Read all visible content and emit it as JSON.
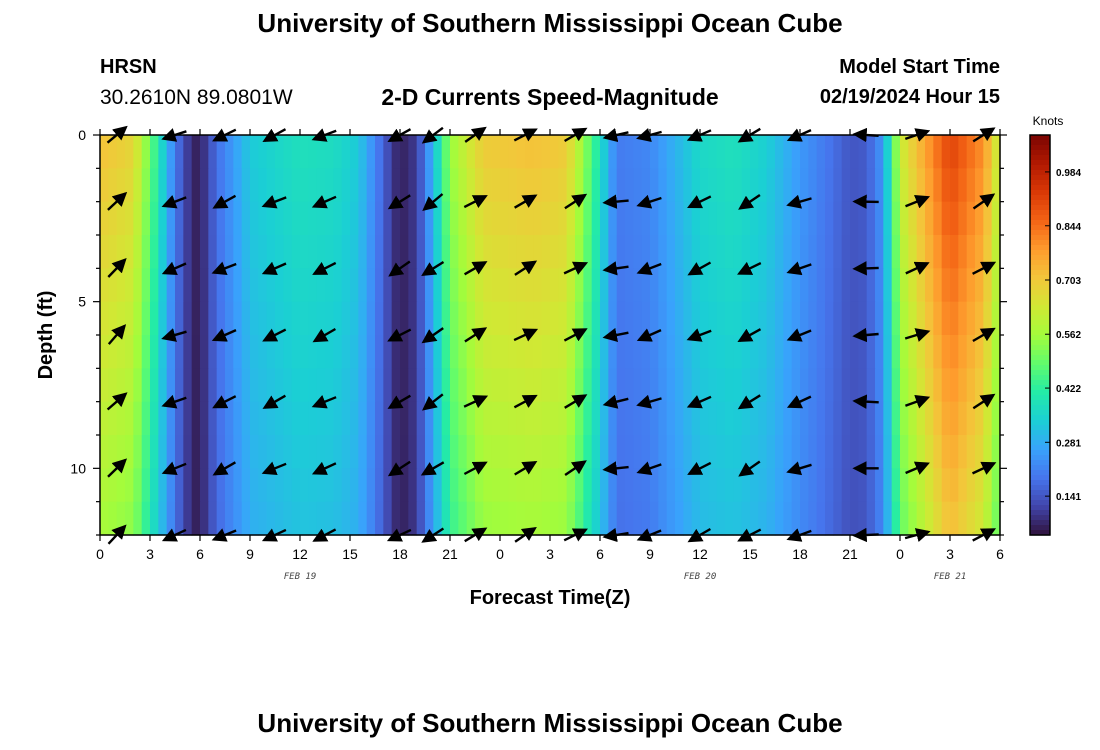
{
  "header": {
    "title": "University of Southern Mississippi Ocean Cube",
    "station": "HRSN",
    "coords": "30.2610N  89.0801W",
    "subtitle": "2-D Currents Speed-Magnitude",
    "start_label": "Model Start Time",
    "start_value": "02/19/2024 Hour 15"
  },
  "footer": {
    "title": "University of Southern Mississippi Ocean Cube"
  },
  "colors": {
    "stops": [
      "#30123b",
      "#4145ab",
      "#4675ed",
      "#39a2fc",
      "#1bcfd4",
      "#24eca6",
      "#61fc6c",
      "#a4fc3b",
      "#d1e834",
      "#f3c63a",
      "#fe9b2d",
      "#f36315",
      "#d93806",
      "#b11901",
      "#7a0402"
    ]
  },
  "chart_data": {
    "type": "heatmap",
    "title": "2-D Currents Speed-Magnitude",
    "xlabel": "Forecast Time(Z)",
    "ylabel": "Depth (ft)",
    "x_ticks": [
      "0",
      "3",
      "6",
      "9",
      "12",
      "15",
      "18",
      "21",
      "0",
      "3",
      "6",
      "9",
      "12",
      "15",
      "18",
      "21",
      "0",
      "3",
      "6"
    ],
    "date_labels": [
      {
        "label": "FEB 19",
        "hour": 12
      },
      {
        "label": "FEB 20",
        "hour": 36
      },
      {
        "label": "FEB 21",
        "hour": 51
      }
    ],
    "y_ticks": [
      0,
      5,
      10
    ],
    "ylim": [
      0,
      12
    ],
    "xlim": [
      0,
      54
    ],
    "colorbar": {
      "unit": "Knots",
      "range": [
        0.04,
        1.08
      ],
      "ticks": [
        "0.984",
        "0.844",
        "0.703",
        "0.562",
        "0.422",
        "0.281",
        "0.141"
      ],
      "tick_values": [
        0.984,
        0.844,
        0.703,
        0.562,
        0.422,
        0.281,
        0.141
      ]
    },
    "speed_profile_hours": [
      0,
      2,
      3,
      3.5,
      4.5,
      5.5,
      6,
      7,
      9,
      12,
      14,
      15.5,
      16.5,
      17.5,
      18,
      19,
      20,
      21,
      23,
      26,
      28,
      29,
      30,
      31,
      33,
      36,
      38,
      40,
      42,
      44,
      45,
      46,
      47,
      48,
      51,
      53,
      54
    ],
    "speed_profile_knots": [
      0.72,
      0.68,
      0.5,
      0.4,
      0.2,
      0.07,
      0.06,
      0.18,
      0.33,
      0.38,
      0.37,
      0.33,
      0.22,
      0.1,
      0.06,
      0.1,
      0.3,
      0.55,
      0.7,
      0.72,
      0.7,
      0.55,
      0.38,
      0.2,
      0.22,
      0.36,
      0.38,
      0.34,
      0.25,
      0.18,
      0.14,
      0.15,
      0.25,
      0.62,
      0.92,
      0.8,
      0.6
    ],
    "vector_depths_ft": [
      0,
      2,
      4,
      6,
      8,
      10,
      12
    ],
    "vector_hours": [
      1,
      4.5,
      7.5,
      10.5,
      13.5,
      18,
      20,
      22.5,
      25.5,
      28.5,
      31,
      33,
      36,
      39,
      42,
      46,
      49,
      53
    ],
    "vector_directions_deg": [
      45,
      200,
      205,
      205,
      205,
      210,
      215,
      30,
      30,
      30,
      190,
      200,
      205,
      210,
      200,
      180,
      20,
      30
    ]
  }
}
